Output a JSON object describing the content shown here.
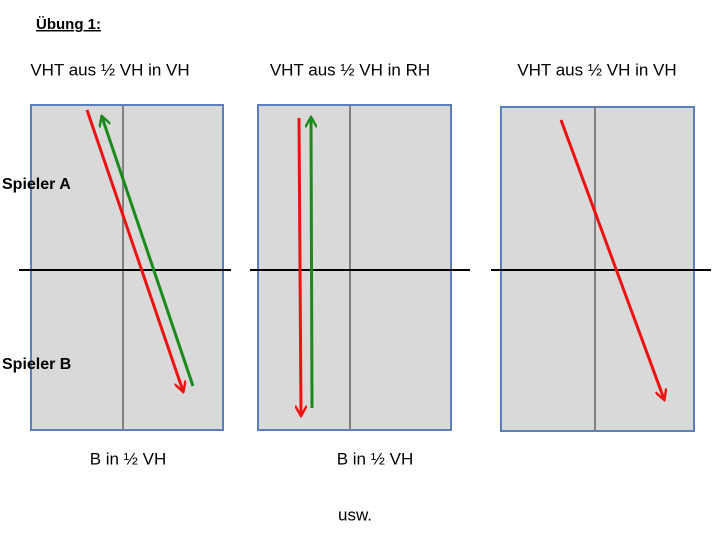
{
  "header": {
    "title": "Übung 1:"
  },
  "panels": [
    {
      "title": "VHT aus ½ VH in VH",
      "caption": "B in ½ VH"
    },
    {
      "title": "VHT aus ½ VH in RH",
      "caption": "B in ½ VH"
    },
    {
      "title": "VHT aus ½ VH in VH"
    }
  ],
  "players": [
    "Spieler A",
    "Spieler B"
  ],
  "footer": "usw."
}
